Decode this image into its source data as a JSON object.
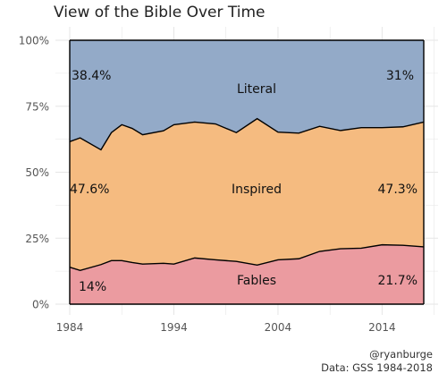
{
  "title": "View of the Bible Over Time",
  "captions": {
    "handle": "@ryanburge",
    "source": "Data: GSS 1984-2018"
  },
  "colors": {
    "fables": "#eb9ba0",
    "inspired": "#f5bb80",
    "literal": "#93aac8",
    "grid": "#e6e6e6",
    "outline": "#000000"
  },
  "chart_data": {
    "type": "area",
    "stacked": true,
    "x_tick_labels": [
      "1984",
      "1994",
      "2004",
      "2014"
    ],
    "y_tick_labels": [
      "0%",
      "25%",
      "50%",
      "75%",
      "100%"
    ],
    "xlim": [
      1984,
      2018
    ],
    "ylim": [
      0,
      100
    ],
    "grid": true,
    "x": [
      1984,
      1985,
      1987,
      1988,
      1989,
      1990,
      1991,
      1993,
      1994,
      1996,
      1998,
      2000,
      2002,
      2004,
      2006,
      2008,
      2010,
      2012,
      2014,
      2016,
      2018
    ],
    "series": [
      {
        "name": "Fables",
        "values": [
          14,
          12.8,
          15,
          16.5,
          16.5,
          15.8,
          15.2,
          15.5,
          15.2,
          17.5,
          16.8,
          16.2,
          14.8,
          16.8,
          17.2,
          20,
          21,
          21.2,
          22.5,
          22.3,
          21.7
        ]
      },
      {
        "name": "Inspired",
        "values": [
          47.6,
          50.2,
          43.5,
          48.5,
          51.5,
          50.8,
          49,
          50.2,
          52.8,
          51.5,
          51.5,
          48.8,
          55.5,
          48.4,
          47.6,
          47.4,
          44.8,
          45.7,
          44.4,
          44.9,
          47.3
        ]
      },
      {
        "name": "Literal",
        "values": [
          38.4,
          37,
          41.5,
          35,
          32,
          33.4,
          35.8,
          34.3,
          32,
          31,
          31.7,
          35,
          29.7,
          34.8,
          35.2,
          32.6,
          34.2,
          33.1,
          33.1,
          32.8,
          31
        ]
      }
    ],
    "annotations": {
      "literal_first": "38.4%",
      "literal_last": "31%",
      "literal_label": "Literal",
      "inspired_first": "47.6%",
      "inspired_last": "47.3%",
      "inspired_label": "Inspired",
      "fables_first": "14%",
      "fables_last": "21.7%",
      "fables_label": "Fables"
    }
  }
}
